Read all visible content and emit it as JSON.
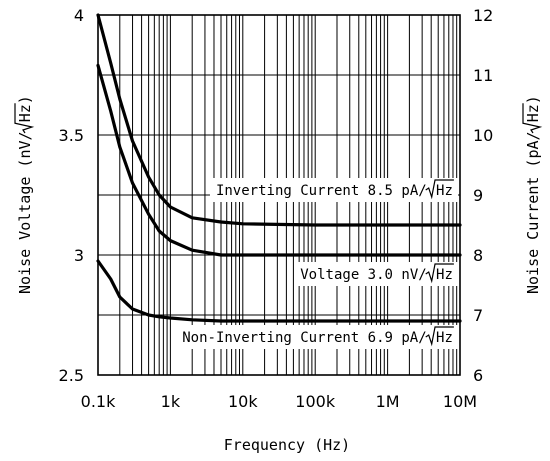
{
  "chart_data": {
    "type": "line",
    "xlabel": "Frequency (Hz)",
    "ylabel_left": "Noise Voltage (nV/√Hz)",
    "ylabel_right": "Noise Current (pA/√Hz)",
    "x_scale": "log",
    "xlim": [
      100,
      10000000
    ],
    "x_ticks": [
      {
        "value": 100,
        "label": "0.1k"
      },
      {
        "value": 1000,
        "label": "1k"
      },
      {
        "value": 10000,
        "label": "10k"
      },
      {
        "value": 100000,
        "label": "100k"
      },
      {
        "value": 1000000,
        "label": "1M"
      },
      {
        "value": 10000000,
        "label": "10M"
      }
    ],
    "ylim_left": [
      2.5,
      4
    ],
    "y_ticks_left": [
      {
        "value": 2.5,
        "label": "2.5"
      },
      {
        "value": 3,
        "label": "3"
      },
      {
        "value": 3.5,
        "label": "3.5"
      },
      {
        "value": 4,
        "label": "4"
      }
    ],
    "ylim_right": [
      6,
      12
    ],
    "y_ticks_right": [
      {
        "value": 6,
        "label": "6"
      },
      {
        "value": 7,
        "label": "7"
      },
      {
        "value": 8,
        "label": "8"
      },
      {
        "value": 9,
        "label": "9"
      },
      {
        "value": 10,
        "label": "10"
      },
      {
        "value": 11,
        "label": "11"
      },
      {
        "value": 12,
        "label": "12"
      }
    ],
    "grid": true,
    "series": [
      {
        "axis": "right",
        "x": [
          100,
          150,
          200,
          300,
          500,
          700,
          1000,
          2000,
          5000,
          10000,
          100000,
          1000000,
          10000000
        ],
        "y": [
          12,
          11.2,
          10.6,
          9.9,
          9.3,
          9.0,
          8.8,
          8.62,
          8.55,
          8.52,
          8.5,
          8.5,
          8.5
        ]
      },
      {
        "axis": "left",
        "x": [
          100,
          150,
          200,
          300,
          500,
          700,
          1000,
          2000,
          5000,
          10000,
          100000,
          1000000,
          10000000
        ],
        "y": [
          3.79,
          3.6,
          3.45,
          3.3,
          3.17,
          3.1,
          3.06,
          3.02,
          3.0,
          3.0,
          3.0,
          3.0,
          3.0
        ]
      },
      {
        "axis": "right",
        "x": [
          100,
          150,
          200,
          300,
          500,
          700,
          1000,
          2000,
          5000,
          10000,
          100000,
          1000000,
          10000000
        ],
        "y": [
          7.9,
          7.6,
          7.3,
          7.1,
          7.0,
          6.97,
          6.95,
          6.92,
          6.9,
          6.9,
          6.9,
          6.9,
          6.9
        ]
      }
    ],
    "annotations": [
      {
        "prefix": "Inverting Current 8.5 pA/",
        "radicand": "Hz",
        "anchor_x": 3000,
        "anchor_y_right": 9.0
      },
      {
        "prefix": "Voltage 3.0 nV/",
        "radicand": "Hz",
        "anchor_x": 1500,
        "anchor_y_left": 2.9
      },
      {
        "prefix": "Non-Inverting Current 6.9 pA/",
        "radicand": "Hz",
        "anchor_x": 300,
        "anchor_y_right": 6.55
      }
    ]
  }
}
